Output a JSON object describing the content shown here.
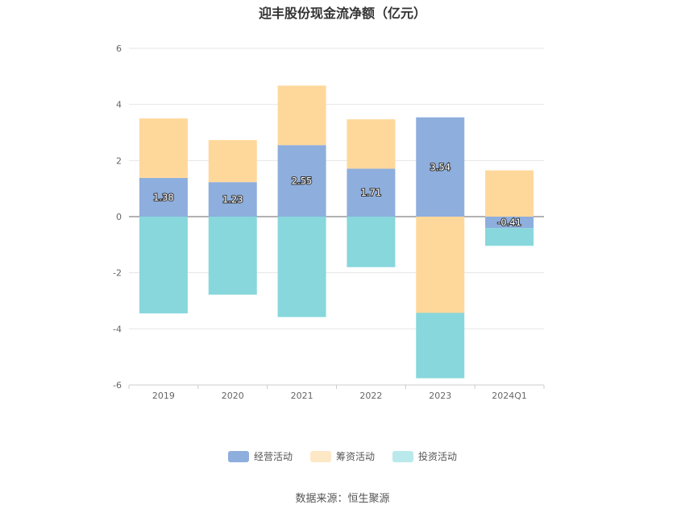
{
  "title": "迎丰股份现金流净额（亿元）",
  "source": "数据来源：恒生聚源",
  "colors": {
    "operating": "#8eaedd",
    "financing": "#fed89b",
    "investing": "#87d7dc",
    "investing_legend": "#b9e9eb",
    "financing_legend": "#fde8c6"
  },
  "chart_data": {
    "type": "bar",
    "stacked": true,
    "categories": [
      "2019",
      "2020",
      "2021",
      "2022",
      "2023",
      "2024Q1"
    ],
    "series": [
      {
        "name": "经营活动",
        "values": [
          1.38,
          1.23,
          2.55,
          1.71,
          3.54,
          -0.41
        ]
      },
      {
        "name": "筹资活动",
        "values": [
          2.12,
          1.5,
          2.12,
          1.76,
          -3.43,
          1.65
        ]
      },
      {
        "name": "投资活动",
        "values": [
          -3.45,
          -2.78,
          -3.58,
          -1.8,
          -2.33,
          -0.63
        ]
      }
    ],
    "data_labels": [
      "1.38",
      "1.23",
      "2.55",
      "1.71",
      "3.54",
      "-0.41"
    ],
    "yticks": [
      "6",
      "4",
      "2",
      "0",
      "-2",
      "-4",
      "-6"
    ],
    "ylim": [
      -6,
      6
    ],
    "grid": true,
    "legend_position": "bottom"
  }
}
